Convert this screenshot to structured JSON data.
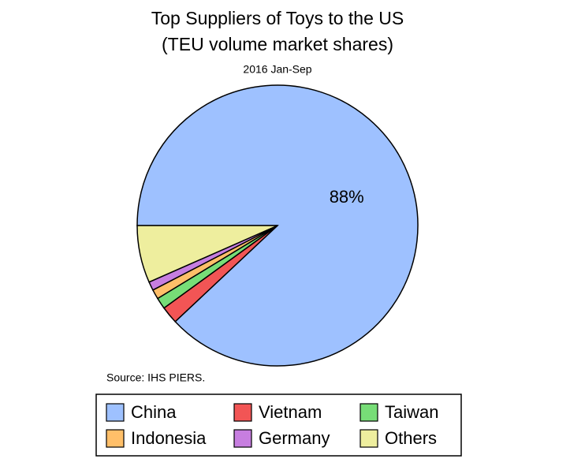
{
  "chart_data": {
    "type": "pie",
    "title": [
      "Top Suppliers of Toys to the US",
      "(TEU volume market shares)"
    ],
    "subtitle": "2016 Jan-Sep",
    "source": "Source: IHS PIERS.",
    "series": [
      {
        "name": "China",
        "color": "#9ec1ff"
      },
      {
        "name": "Vietnam",
        "color": "#f25555"
      },
      {
        "name": "Taiwan",
        "color": "#77dd77"
      },
      {
        "name": "Indonesia",
        "color": "#ffbf69"
      },
      {
        "name": "Germany",
        "color": "#c77ee0"
      },
      {
        "name": "Others",
        "color": "#eeee9e"
      }
    ],
    "values": [
      88,
      2,
      1.3,
      1.1,
      1,
      6.6
    ],
    "value_labels": [
      "88%",
      null,
      null,
      null,
      null,
      null
    ]
  }
}
